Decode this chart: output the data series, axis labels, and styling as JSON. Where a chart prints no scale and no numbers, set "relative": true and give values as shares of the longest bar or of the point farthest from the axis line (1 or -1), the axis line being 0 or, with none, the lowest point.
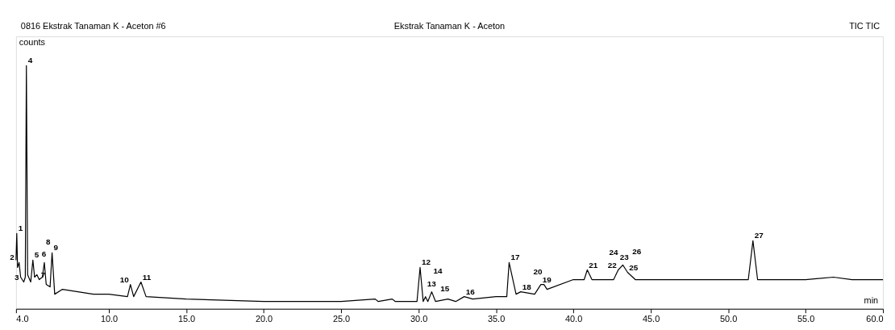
{
  "chart_data": {
    "type": "line",
    "relative": true,
    "title": "0816 Ekstrak Tanaman K - Aceton #6",
    "subtitle": "Ekstrak Tanaman K - Aceton",
    "xlabel": "min",
    "ylabel": "counts",
    "xlim": [
      4,
      60
    ],
    "xticks": [
      {
        "value": 4,
        "label": "4.0"
      },
      {
        "value": 10,
        "label": "10.0"
      },
      {
        "value": 15,
        "label": "15.0"
      },
      {
        "value": 20,
        "label": "20.0"
      },
      {
        "value": 25,
        "label": "25.0"
      },
      {
        "value": 30,
        "label": "30.0"
      },
      {
        "value": 35,
        "label": "35.0"
      },
      {
        "value": 40,
        "label": "40.0"
      },
      {
        "value": 45,
        "label": "45.0"
      },
      {
        "value": 50,
        "label": "50.0"
      },
      {
        "value": 55,
        "label": "55.0"
      },
      {
        "value": 60,
        "label": "60.0"
      }
    ],
    "x": [
      4.0,
      4.05,
      4.1,
      4.2,
      4.3,
      4.5,
      4.6,
      4.67,
      4.75,
      4.95,
      5.09,
      5.2,
      5.35,
      5.5,
      5.7,
      5.83,
      5.95,
      6.2,
      6.33,
      6.5,
      7.0,
      8.0,
      9.0,
      10.0,
      11.2,
      11.39,
      11.6,
      12.07,
      12.4,
      15,
      20,
      25,
      27.2,
      27.4,
      28.3,
      28.5,
      29.9,
      30.1,
      30.3,
      30.45,
      30.6,
      30.85,
      31.1,
      31.9,
      32.4,
      32.95,
      33.5,
      35.0,
      35.7,
      35.85,
      36.3,
      36.6,
      37.5,
      37.9,
      38.1,
      38.3,
      40.0,
      40.7,
      40.9,
      41.2,
      42.6,
      42.9,
      43.2,
      43.5,
      44.0,
      45,
      47,
      49,
      51.3,
      51.6,
      51.9,
      55,
      56.8,
      58,
      60
    ],
    "series": [
      {
        "color": "#000000",
        "values": [
          0.2,
          0.31,
          0.17,
          0.19,
          0.13,
          0.11,
          0.13,
          1.0,
          0.14,
          0.11,
          0.2,
          0.13,
          0.14,
          0.12,
          0.13,
          0.19,
          0.1,
          0.09,
          0.23,
          0.06,
          0.08,
          0.07,
          0.06,
          0.06,
          0.05,
          0.1,
          0.05,
          0.11,
          0.05,
          0.04,
          0.03,
          0.03,
          0.04,
          0.03,
          0.04,
          0.03,
          0.03,
          0.17,
          0.03,
          0.05,
          0.03,
          0.07,
          0.03,
          0.04,
          0.03,
          0.05,
          0.04,
          0.05,
          0.05,
          0.19,
          0.06,
          0.07,
          0.06,
          0.1,
          0.1,
          0.08,
          0.12,
          0.12,
          0.16,
          0.12,
          0.12,
          0.16,
          0.18,
          0.15,
          0.12,
          0.12,
          0.12,
          0.12,
          0.12,
          0.28,
          0.12,
          0.12,
          0.13,
          0.12,
          0.12
        ]
      }
    ],
    "annotations": [
      "TIC TIC",
      {
        "text": "1",
        "x": 4.05,
        "y": 0.31
      },
      {
        "text": "2",
        "x": 4.2,
        "y": 0.19
      },
      {
        "text": "3",
        "x": 4.5,
        "y": 0.11
      },
      {
        "text": "4",
        "x": 4.67,
        "y": 1.0
      },
      {
        "text": "5",
        "x": 5.09,
        "y": 0.2
      },
      {
        "text": "6",
        "x": 5.35,
        "y": 0.14
      },
      {
        "text": "7",
        "x": 5.5,
        "y": 0.12
      },
      {
        "text": "8",
        "x": 5.83,
        "y": 0.19
      },
      {
        "text": "9",
        "x": 6.33,
        "y": 0.23
      },
      {
        "text": "10",
        "x": 11.39,
        "y": 0.1
      },
      {
        "text": "11",
        "x": 12.07,
        "y": 0.11
      },
      {
        "text": "12",
        "x": 30.1,
        "y": 0.17
      },
      {
        "text": "13",
        "x": 30.45,
        "y": 0.05
      },
      {
        "text": "14",
        "x": 30.85,
        "y": 0.07
      },
      {
        "text": "15",
        "x": 31.1,
        "y": 0.03
      },
      {
        "text": "16",
        "x": 32.95,
        "y": 0.05
      },
      {
        "text": "17",
        "x": 35.85,
        "y": 0.19
      },
      {
        "text": "18",
        "x": 36.6,
        "y": 0.07
      },
      {
        "text": "19",
        "x": 37.9,
        "y": 0.1
      },
      {
        "text": "20",
        "x": 38.1,
        "y": 0.1
      },
      {
        "text": "21",
        "x": 40.9,
        "y": 0.16
      },
      {
        "text": "22",
        "x": 42.9,
        "y": 0.16
      },
      {
        "text": "23",
        "x": 42.9,
        "y": 0.16
      },
      {
        "text": "24",
        "x": 43.2,
        "y": 0.18
      },
      {
        "text": "25",
        "x": 43.5,
        "y": 0.15
      },
      {
        "text": "26",
        "x": 43.5,
        "y": 0.15
      },
      {
        "text": "27",
        "x": 51.6,
        "y": 0.28
      }
    ]
  }
}
